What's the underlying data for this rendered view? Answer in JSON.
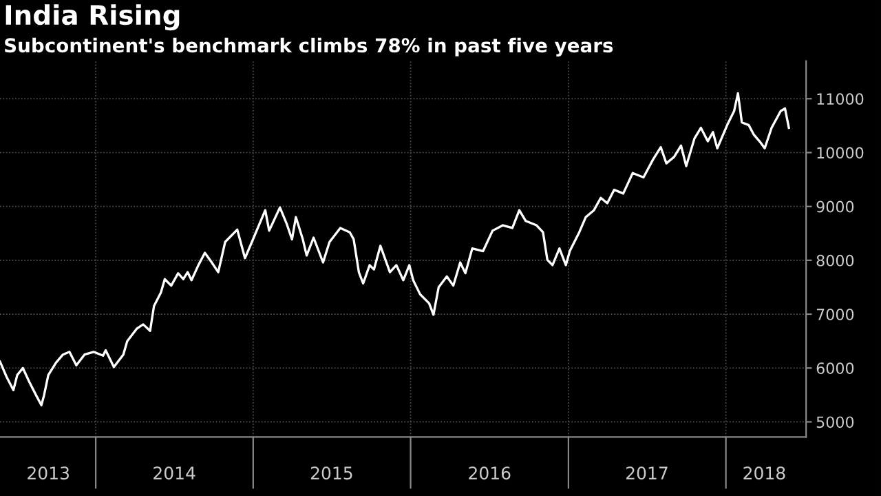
{
  "chart_data": {
    "type": "line",
    "title": "India Rising",
    "subtitle": "Subcontinent's benchmark climbs 78% in past five years",
    "x": [
      "2013-05-24",
      "2013-06-08",
      "2013-06-24",
      "2013-07-03",
      "2013-07-16",
      "2013-07-31",
      "2013-08-16",
      "2013-08-28",
      "2013-09-03",
      "2013-09-13",
      "2013-10-01",
      "2013-10-17",
      "2013-11-01",
      "2013-11-17",
      "2013-12-06",
      "2013-12-27",
      "2014-01-18",
      "2014-01-24",
      "2014-02-12",
      "2014-03-06",
      "2014-03-15",
      "2014-04-06",
      "2014-04-21",
      "2014-05-07",
      "2014-05-16",
      "2014-06-01",
      "2014-06-10",
      "2014-06-25",
      "2014-07-11",
      "2014-07-23",
      "2014-08-02",
      "2014-08-11",
      "2014-08-27",
      "2014-09-11",
      "2014-09-27",
      "2014-10-12",
      "2014-10-28",
      "2014-11-25",
      "2014-12-13",
      "2014-12-29",
      "2015-01-29",
      "2015-02-07",
      "2015-03-04",
      "2015-03-20",
      "2015-04-01",
      "2015-04-10",
      "2015-04-26",
      "2015-05-05",
      "2015-05-21",
      "2015-06-12",
      "2015-06-27",
      "2015-07-22",
      "2015-08-13",
      "2015-08-22",
      "2015-09-03",
      "2015-09-13",
      "2015-09-28",
      "2015-10-08",
      "2015-10-23",
      "2015-11-14",
      "2015-11-29",
      "2015-12-15",
      "2015-12-29",
      "2016-01-07",
      "2016-01-23",
      "2016-02-13",
      "2016-02-23",
      "2016-03-06",
      "2016-03-25",
      "2016-04-09",
      "2016-04-25",
      "2016-05-07",
      "2016-05-23",
      "2016-06-17",
      "2016-07-09",
      "2016-08-02",
      "2016-08-24",
      "2016-09-09",
      "2016-09-24",
      "2016-10-19",
      "2016-11-03",
      "2016-11-13",
      "2016-11-25",
      "2016-12-11",
      "2016-12-26",
      "2017-01-04",
      "2017-01-26",
      "2017-02-10",
      "2017-03-01",
      "2017-03-17",
      "2017-04-01",
      "2017-04-17",
      "2017-05-08",
      "2017-05-30",
      "2017-06-24",
      "2017-07-16",
      "2017-08-03",
      "2017-08-16",
      "2017-09-03",
      "2017-09-19",
      "2017-10-01",
      "2017-10-20",
      "2017-11-04",
      "2017-11-20",
      "2017-12-02",
      "2017-12-12",
      "2018-01-04",
      "2018-01-20",
      "2018-01-29",
      "2018-02-07",
      "2018-02-23",
      "2018-03-07",
      "2018-03-23",
      "2018-04-01",
      "2018-04-17",
      "2018-05-08",
      "2018-05-18",
      "2018-05-27"
    ],
    "series": [
      {
        "color": "#ffffff",
        "values": [
          6120,
          5840,
          5590,
          5870,
          6000,
          5740,
          5490,
          5310,
          5490,
          5870,
          6100,
          6250,
          6300,
          6050,
          6250,
          6300,
          6230,
          6330,
          6020,
          6250,
          6500,
          6730,
          6810,
          6690,
          7150,
          7400,
          7650,
          7530,
          7760,
          7650,
          7780,
          7630,
          7910,
          8140,
          7960,
          7780,
          8340,
          8570,
          8040,
          8340,
          8930,
          8550,
          8980,
          8670,
          8390,
          8800,
          8390,
          8090,
          8420,
          7960,
          8340,
          8600,
          8520,
          8390,
          7780,
          7570,
          7910,
          7830,
          8270,
          7780,
          7910,
          7630,
          7910,
          7630,
          7370,
          7200,
          6990,
          7500,
          7700,
          7530,
          7960,
          7760,
          8220,
          8170,
          8550,
          8650,
          8600,
          8930,
          8730,
          8650,
          8520,
          8010,
          7910,
          8220,
          7910,
          8170,
          8520,
          8800,
          8930,
          9160,
          9060,
          9310,
          9240,
          9620,
          9540,
          9870,
          10100,
          9800,
          9920,
          10130,
          9750,
          10260,
          10460,
          10210,
          10380,
          10080,
          10510,
          10770,
          11100,
          10560,
          10510,
          10330,
          10180,
          10080,
          10460,
          10770,
          10820,
          10460
        ]
      }
    ],
    "xlim": [
      "2013-05-24",
      "2018-07-06"
    ],
    "xticks": [
      {
        "value": "2014-01-01",
        "label": null
      },
      {
        "value": "2015-01-01",
        "label": null
      },
      {
        "value": "2016-01-01",
        "label": null
      },
      {
        "value": "2017-01-01",
        "label": null
      },
      {
        "value": "2018-01-01",
        "label": null
      },
      {
        "value": "2013-09-13",
        "label": "2013"
      },
      {
        "value": "2014-07-02",
        "label": "2014"
      },
      {
        "value": "2015-07-02",
        "label": "2015"
      },
      {
        "value": "2016-07-02",
        "label": "2016"
      },
      {
        "value": "2017-07-02",
        "label": "2017"
      },
      {
        "value": "2018-03-31",
        "label": "2018"
      }
    ],
    "ylim": [
      4720,
      11700
    ],
    "yticks": [
      5000,
      6000,
      7000,
      8000,
      9000,
      10000,
      11000
    ],
    "grid": true,
    "line_style": "solid",
    "marker": "none"
  }
}
